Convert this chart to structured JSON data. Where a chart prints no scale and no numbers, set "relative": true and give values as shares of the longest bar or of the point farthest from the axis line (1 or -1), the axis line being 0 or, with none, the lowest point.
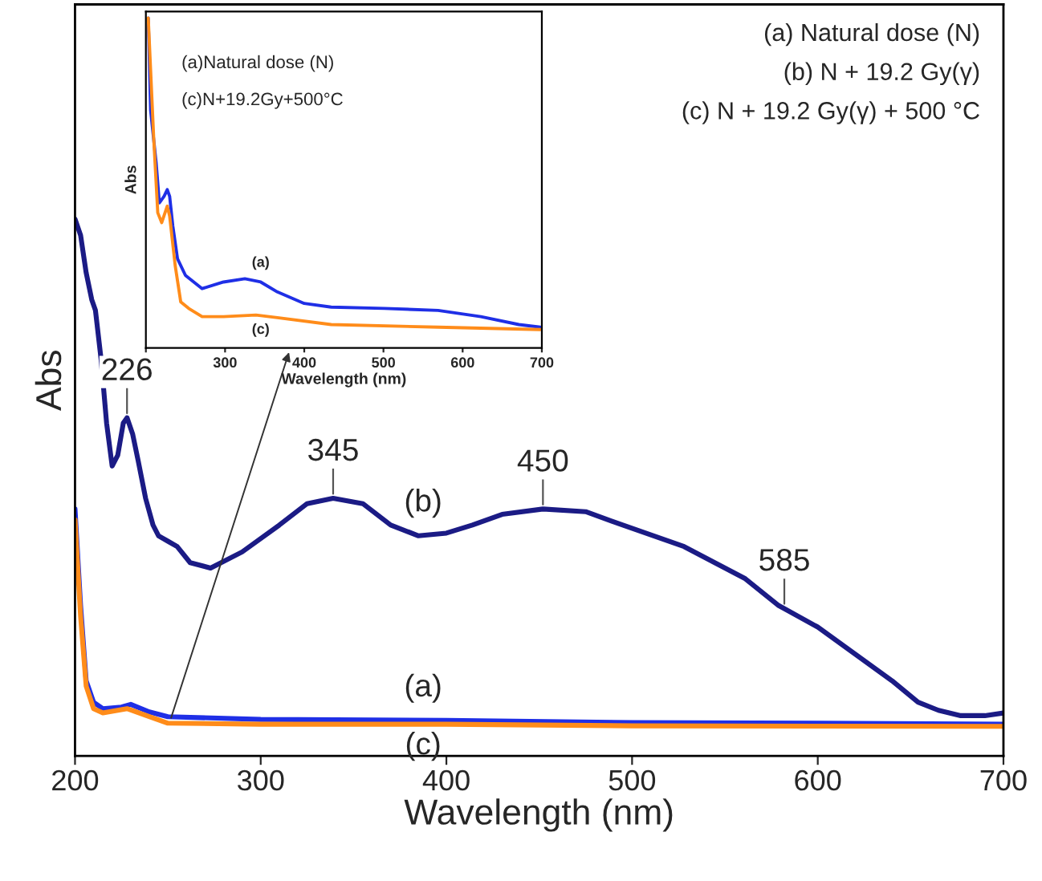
{
  "chart_data": [
    {
      "type": "line",
      "xlabel": "Wavelength (nm)",
      "ylabel": "Abs",
      "relative": true,
      "xlim": [
        200,
        700
      ],
      "xticks": [
        200,
        300,
        400,
        500,
        600,
        700
      ],
      "grid": false,
      "legend": false,
      "series": [
        {
          "name": "(a)",
          "color": "#1f2fe6",
          "x": [
            200,
            203,
            206,
            210,
            215,
            225,
            230,
            240,
            250,
            300,
            400,
            500,
            600,
            700
          ],
          "values": [
            0.46,
            0.28,
            0.14,
            0.1,
            0.088,
            0.091,
            0.096,
            0.082,
            0.073,
            0.068,
            0.066,
            0.062,
            0.061,
            0.059
          ]
        },
        {
          "name": "(b)",
          "color": "#1b1b85",
          "x": [
            200,
            203,
            206,
            209,
            211,
            214,
            217,
            220,
            223,
            226,
            228,
            231,
            234,
            238,
            242,
            245,
            250,
            255,
            262,
            273,
            290,
            310,
            325,
            339,
            355,
            370,
            385,
            400,
            414,
            430,
            452,
            475,
            495,
            528,
            561,
            579,
            600,
            620,
            640,
            654,
            665,
            677,
            690,
            700
          ],
          "values": [
            1.0,
            0.97,
            0.9,
            0.85,
            0.83,
            0.74,
            0.62,
            0.54,
            0.56,
            0.62,
            0.63,
            0.6,
            0.55,
            0.48,
            0.43,
            0.41,
            0.4,
            0.39,
            0.36,
            0.35,
            0.38,
            0.43,
            0.47,
            0.48,
            0.47,
            0.43,
            0.41,
            0.415,
            0.43,
            0.45,
            0.46,
            0.455,
            0.43,
            0.39,
            0.33,
            0.28,
            0.24,
            0.19,
            0.14,
            0.1,
            0.085,
            0.075,
            0.075,
            0.08
          ]
        },
        {
          "name": "(c)",
          "color": "#ff8c1a",
          "x": [
            200,
            203,
            206,
            210,
            215,
            228,
            240,
            250,
            300,
            400,
            500,
            700
          ],
          "values": [
            0.44,
            0.26,
            0.13,
            0.088,
            0.08,
            0.088,
            0.073,
            0.061,
            0.059,
            0.059,
            0.056,
            0.055
          ]
        }
      ],
      "annotations": [
        "(a) Natural dose (N)",
        "(b) N + 19.2 Gy(γ)",
        "(c) N + 19.2 Gy(γ) + 500 °C",
        {
          "text": "226",
          "x": 228,
          "y": 0.63
        },
        {
          "text": "345",
          "x": 339,
          "y": 0.48
        },
        {
          "text": "450",
          "x": 452,
          "y": 0.46
        },
        {
          "text": "585",
          "x": 582,
          "y": 0.275
        }
      ]
    },
    {
      "type": "line",
      "xlabel": "Wavelength (nm)",
      "ylabel": "Abs",
      "relative": true,
      "xlim": [
        200,
        700
      ],
      "xticks": [
        {
          "value": 200,
          "label": null
        },
        300,
        400,
        500,
        600,
        700
      ],
      "grid": false,
      "legend": false,
      "series": [
        {
          "name": "(a)",
          "color": "#1f2fe6",
          "x": [
            203,
            206,
            213,
            217,
            223,
            227,
            230,
            234,
            240,
            250,
            271,
            298,
            325,
            345,
            366,
            400,
            434,
            501,
            569,
            623,
            671,
            698
          ],
          "values": [
            1.0,
            0.72,
            0.56,
            0.44,
            0.46,
            0.48,
            0.46,
            0.37,
            0.27,
            0.22,
            0.18,
            0.2,
            0.21,
            0.2,
            0.17,
            0.135,
            0.124,
            0.12,
            0.114,
            0.095,
            0.071,
            0.063
          ]
        },
        {
          "name": "(c)",
          "color": "#ff8c1a",
          "x": [
            203,
            210,
            215,
            220,
            227,
            230,
            237,
            244,
            254,
            271,
            298,
            339,
            366,
            434,
            569,
            698
          ],
          "values": [
            1.0,
            0.63,
            0.41,
            0.38,
            0.43,
            0.4,
            0.25,
            0.14,
            0.12,
            0.095,
            0.095,
            0.1,
            0.092,
            0.071,
            0.063,
            0.056
          ]
        }
      ],
      "annotations": [
        "(a)Natural dose (N)",
        "(c)N+19.2Gy+500°C"
      ]
    }
  ]
}
